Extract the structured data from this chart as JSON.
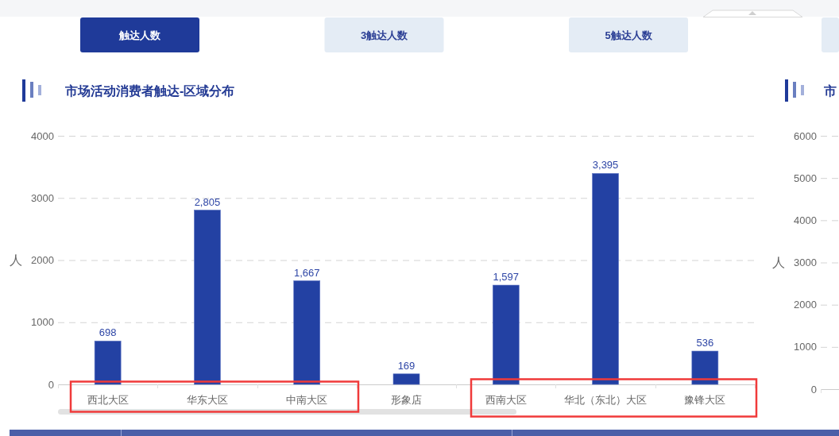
{
  "chart_data": [
    {
      "type": "other",
      "annotations": [
        "触达人数",
        "3触达人数",
        "5触达人数"
      ]
    },
    {
      "type": "bar",
      "title": "市场活动消费者触达-区域分布",
      "ylabel": "人",
      "categories": [
        "西北大区",
        "华东大区",
        "中南大区",
        "形象店",
        "西南大区",
        "华北（东北）大区",
        "豫锋大区"
      ],
      "values": [
        698,
        2805,
        1667,
        169,
        1597,
        3395,
        536
      ],
      "value_labels": [
        "698",
        "2,805",
        "1,667",
        "169",
        "1,597",
        "3,395",
        "536"
      ],
      "color": "#2341a3",
      "ylim": [
        0,
        4000
      ],
      "yticks": [
        0,
        1000,
        2000,
        3000,
        4000
      ],
      "grid": "y"
    },
    {
      "type": "bar",
      "ylabel": "人",
      "categories": [
        null
      ],
      "values": [
        null
      ],
      "color": "#2341a3",
      "ylim": [
        0,
        6000
      ],
      "yticks": [
        0,
        1000,
        2000,
        3000,
        4000,
        5000,
        6000
      ],
      "grid": "y",
      "tick_labels": "y",
      "annotations": [
        "市"
      ]
    }
  ]
}
